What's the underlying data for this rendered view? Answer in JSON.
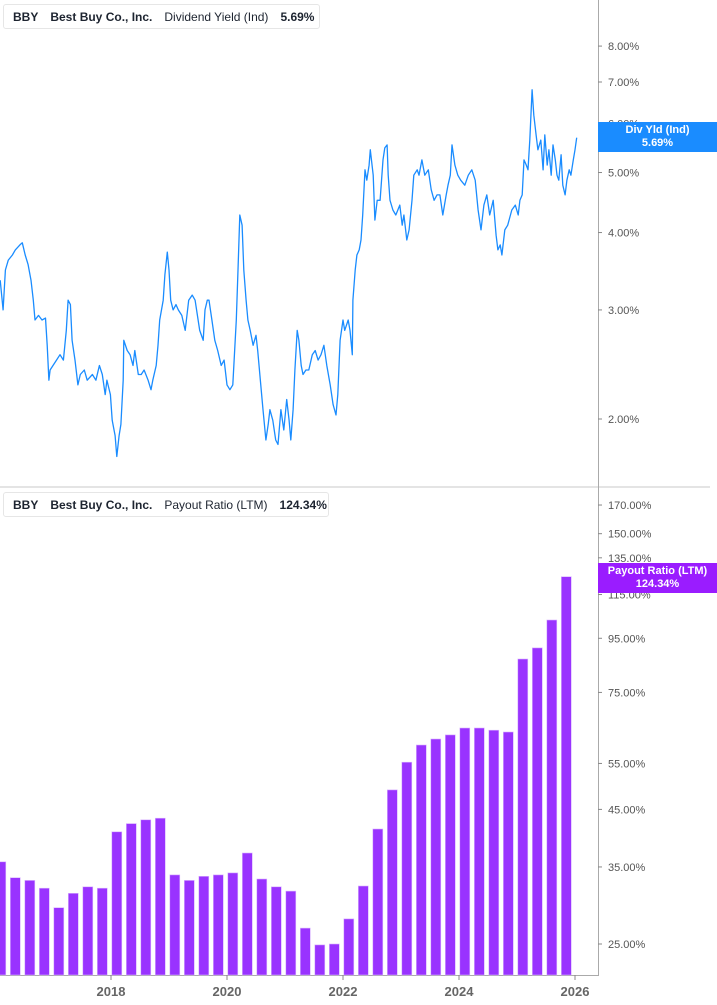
{
  "colors": {
    "yield": "#1a8cff",
    "payout": "#9933ff",
    "axis": "#999999"
  },
  "legend_top": {
    "ticker": "BBY",
    "company": "Best Buy Co., Inc.",
    "metric": "Dividend Yield (Ind)",
    "value": "5.69%"
  },
  "legend_bottom": {
    "ticker": "BBY",
    "company": "Best Buy Co., Inc.",
    "metric": "Payout Ratio (LTM)",
    "value": "124.34%"
  },
  "tag_top": {
    "label": "Div Yld (Ind)",
    "value": "5.69%"
  },
  "tag_bottom": {
    "label": "Payout Ratio (LTM)",
    "value": "124.34%"
  },
  "chart_data": [
    {
      "type": "line",
      "title": "Dividend Yield (Ind)",
      "yscale": "log",
      "ylim": [
        1.7,
        9.0
      ],
      "yticks": [
        2,
        3,
        4,
        5,
        6,
        7,
        8
      ],
      "ytick_labels": [
        "2.00%",
        "3.00%",
        "4.00%",
        "5.00%",
        "6.00%",
        "7.00%",
        "8.00%"
      ],
      "series": [
        {
          "name": "Div Yld (Ind)",
          "points": [
            [
              2016.09,
              3.35
            ],
            [
              2016.14,
              3.0
            ],
            [
              2016.18,
              3.48
            ],
            [
              2016.23,
              3.61
            ],
            [
              2016.3,
              3.68
            ],
            [
              2016.35,
              3.75
            ],
            [
              2016.43,
              3.82
            ],
            [
              2016.47,
              3.85
            ],
            [
              2016.52,
              3.68
            ],
            [
              2016.57,
              3.55
            ],
            [
              2016.62,
              3.35
            ],
            [
              2016.66,
              3.11
            ],
            [
              2016.69,
              2.89
            ],
            [
              2016.75,
              2.94
            ],
            [
              2016.81,
              2.89
            ],
            [
              2016.87,
              2.91
            ],
            [
              2016.9,
              2.63
            ],
            [
              2016.93,
              2.31
            ],
            [
              2016.95,
              2.4
            ],
            [
              2017.0,
              2.44
            ],
            [
              2017.06,
              2.49
            ],
            [
              2017.12,
              2.54
            ],
            [
              2017.18,
              2.49
            ],
            [
              2017.23,
              2.78
            ],
            [
              2017.26,
              3.11
            ],
            [
              2017.3,
              3.06
            ],
            [
              2017.33,
              2.68
            ],
            [
              2017.38,
              2.49
            ],
            [
              2017.43,
              2.27
            ],
            [
              2017.47,
              2.36
            ],
            [
              2017.54,
              2.4
            ],
            [
              2017.59,
              2.31
            ],
            [
              2017.68,
              2.36
            ],
            [
              2017.74,
              2.31
            ],
            [
              2017.8,
              2.44
            ],
            [
              2017.85,
              2.36
            ],
            [
              2017.9,
              2.19
            ],
            [
              2017.93,
              2.31
            ],
            [
              2017.99,
              2.19
            ],
            [
              2018.02,
              1.99
            ],
            [
              2018.07,
              1.88
            ],
            [
              2018.1,
              1.74
            ],
            [
              2018.14,
              1.88
            ],
            [
              2018.17,
              1.96
            ],
            [
              2018.21,
              2.31
            ],
            [
              2018.22,
              2.68
            ],
            [
              2018.28,
              2.58
            ],
            [
              2018.33,
              2.54
            ],
            [
              2018.38,
              2.44
            ],
            [
              2018.41,
              2.58
            ],
            [
              2018.47,
              2.36
            ],
            [
              2018.52,
              2.36
            ],
            [
              2018.57,
              2.4
            ],
            [
              2018.64,
              2.31
            ],
            [
              2018.69,
              2.23
            ],
            [
              2018.72,
              2.31
            ],
            [
              2018.78,
              2.44
            ],
            [
              2018.81,
              2.63
            ],
            [
              2018.84,
              2.89
            ],
            [
              2018.9,
              3.11
            ],
            [
              2018.93,
              3.42
            ],
            [
              2018.97,
              3.72
            ],
            [
              2019.0,
              3.48
            ],
            [
              2019.03,
              3.11
            ],
            [
              2019.07,
              3.0
            ],
            [
              2019.12,
              3.06
            ],
            [
              2019.16,
              3.0
            ],
            [
              2019.22,
              2.94
            ],
            [
              2019.28,
              2.78
            ],
            [
              2019.34,
              3.11
            ],
            [
              2019.4,
              3.17
            ],
            [
              2019.45,
              3.11
            ],
            [
              2019.53,
              2.78
            ],
            [
              2019.59,
              2.68
            ],
            [
              2019.62,
              3.0
            ],
            [
              2019.66,
              3.11
            ],
            [
              2019.69,
              3.11
            ],
            [
              2019.74,
              2.89
            ],
            [
              2019.79,
              2.68
            ],
            [
              2019.84,
              2.58
            ],
            [
              2019.9,
              2.44
            ],
            [
              2019.95,
              2.49
            ],
            [
              2020.0,
              2.27
            ],
            [
              2020.05,
              2.23
            ],
            [
              2020.1,
              2.27
            ],
            [
              2020.16,
              2.89
            ],
            [
              2020.19,
              3.48
            ],
            [
              2020.22,
              4.27
            ],
            [
              2020.26,
              4.11
            ],
            [
              2020.29,
              3.48
            ],
            [
              2020.33,
              3.11
            ],
            [
              2020.36,
              2.89
            ],
            [
              2020.4,
              2.78
            ],
            [
              2020.45,
              2.63
            ],
            [
              2020.5,
              2.73
            ],
            [
              2020.53,
              2.58
            ],
            [
              2020.59,
              2.23
            ],
            [
              2020.62,
              2.07
            ],
            [
              2020.67,
              1.85
            ],
            [
              2020.71,
              1.96
            ],
            [
              2020.74,
              2.07
            ],
            [
              2020.79,
              1.99
            ],
            [
              2020.84,
              1.85
            ],
            [
              2020.88,
              1.82
            ],
            [
              2020.93,
              2.07
            ],
            [
              2020.98,
              1.92
            ],
            [
              2021.03,
              2.15
            ],
            [
              2021.07,
              1.99
            ],
            [
              2021.1,
              1.85
            ],
            [
              2021.14,
              2.07
            ],
            [
              2021.17,
              2.4
            ],
            [
              2021.21,
              2.78
            ],
            [
              2021.24,
              2.68
            ],
            [
              2021.28,
              2.44
            ],
            [
              2021.31,
              2.36
            ],
            [
              2021.36,
              2.4
            ],
            [
              2021.41,
              2.4
            ],
            [
              2021.47,
              2.54
            ],
            [
              2021.52,
              2.58
            ],
            [
              2021.57,
              2.49
            ],
            [
              2021.62,
              2.54
            ],
            [
              2021.67,
              2.63
            ],
            [
              2021.72,
              2.44
            ],
            [
              2021.78,
              2.27
            ],
            [
              2021.83,
              2.11
            ],
            [
              2021.88,
              2.03
            ],
            [
              2021.91,
              2.19
            ],
            [
              2021.95,
              2.68
            ],
            [
              2022.0,
              2.89
            ],
            [
              2022.03,
              2.78
            ],
            [
              2022.09,
              2.89
            ],
            [
              2022.12,
              2.78
            ],
            [
              2022.16,
              2.54
            ],
            [
              2022.17,
              3.11
            ],
            [
              2022.21,
              3.48
            ],
            [
              2022.24,
              3.68
            ],
            [
              2022.28,
              3.75
            ],
            [
              2022.31,
              3.89
            ],
            [
              2022.34,
              4.27
            ],
            [
              2022.38,
              5.05
            ],
            [
              2022.41,
              4.86
            ],
            [
              2022.45,
              5.14
            ],
            [
              2022.47,
              5.44
            ],
            [
              2022.52,
              4.95
            ],
            [
              2022.55,
              4.19
            ],
            [
              2022.59,
              4.51
            ],
            [
              2022.64,
              4.51
            ],
            [
              2022.69,
              5.24
            ],
            [
              2022.72,
              5.48
            ],
            [
              2022.76,
              5.54
            ],
            [
              2022.78,
              4.95
            ],
            [
              2022.81,
              4.51
            ],
            [
              2022.86,
              4.35
            ],
            [
              2022.91,
              4.27
            ],
            [
              2022.98,
              4.43
            ],
            [
              2023.02,
              4.11
            ],
            [
              2023.05,
              4.27
            ],
            [
              2023.1,
              3.89
            ],
            [
              2023.14,
              4.04
            ],
            [
              2023.19,
              4.51
            ],
            [
              2023.22,
              4.95
            ],
            [
              2023.28,
              5.05
            ],
            [
              2023.31,
              4.95
            ],
            [
              2023.36,
              5.24
            ],
            [
              2023.41,
              4.95
            ],
            [
              2023.47,
              5.05
            ],
            [
              2023.52,
              4.69
            ],
            [
              2023.57,
              4.51
            ],
            [
              2023.62,
              4.6
            ],
            [
              2023.67,
              4.6
            ],
            [
              2023.72,
              4.27
            ],
            [
              2023.78,
              4.6
            ],
            [
              2023.81,
              4.77
            ],
            [
              2023.85,
              4.95
            ],
            [
              2023.88,
              5.54
            ],
            [
              2023.93,
              5.14
            ],
            [
              2023.98,
              4.95
            ],
            [
              2024.03,
              4.86
            ],
            [
              2024.1,
              4.77
            ],
            [
              2024.16,
              4.95
            ],
            [
              2024.22,
              5.05
            ],
            [
              2024.28,
              4.86
            ],
            [
              2024.33,
              4.35
            ],
            [
              2024.38,
              4.04
            ],
            [
              2024.43,
              4.43
            ],
            [
              2024.48,
              4.6
            ],
            [
              2024.53,
              4.27
            ],
            [
              2024.59,
              4.51
            ],
            [
              2024.64,
              3.96
            ],
            [
              2024.67,
              3.75
            ],
            [
              2024.71,
              3.82
            ],
            [
              2024.74,
              3.68
            ],
            [
              2024.79,
              4.04
            ],
            [
              2024.84,
              4.11
            ],
            [
              2024.91,
              4.35
            ],
            [
              2024.97,
              4.43
            ],
            [
              2025.02,
              4.27
            ],
            [
              2025.05,
              4.51
            ],
            [
              2025.09,
              4.6
            ],
            [
              2025.12,
              5.24
            ],
            [
              2025.16,
              5.14
            ],
            [
              2025.19,
              5.05
            ],
            [
              2025.22,
              5.64
            ],
            [
              2025.26,
              6.8
            ],
            [
              2025.29,
              6.19
            ],
            [
              2025.33,
              5.75
            ],
            [
              2025.36,
              5.44
            ],
            [
              2025.41,
              5.64
            ],
            [
              2025.45,
              5.05
            ],
            [
              2025.48,
              5.75
            ],
            [
              2025.52,
              5.14
            ],
            [
              2025.55,
              5.44
            ],
            [
              2025.59,
              4.95
            ],
            [
              2025.62,
              5.54
            ],
            [
              2025.66,
              5.24
            ],
            [
              2025.69,
              4.95
            ],
            [
              2025.72,
              4.86
            ],
            [
              2025.76,
              5.34
            ],
            [
              2025.79,
              4.77
            ],
            [
              2025.83,
              4.6
            ],
            [
              2025.86,
              4.86
            ],
            [
              2025.9,
              5.05
            ],
            [
              2025.93,
              4.95
            ],
            [
              2025.97,
              5.24
            ],
            [
              2026.0,
              5.44
            ],
            [
              2026.03,
              5.69
            ]
          ]
        }
      ]
    },
    {
      "type": "bar",
      "title": "Payout Ratio (LTM)",
      "yscale": "log",
      "ylim": [
        21.5,
        180
      ],
      "yticks": [
        25,
        35,
        45,
        55,
        75,
        95,
        115,
        135,
        150,
        170
      ],
      "ytick_labels": [
        "25.00%",
        "35.00%",
        "45.00%",
        "55.00%",
        "75.00%",
        "95.00%",
        "115.00%",
        "135.00%",
        "150.00%",
        "170.00%"
      ],
      "x_start": 2016.1,
      "x_step_years": 0.25,
      "values": [
        35.8,
        33.4,
        33.0,
        31.9,
        29.3,
        31.2,
        32.1,
        31.9,
        40.8,
        42.3,
        43.0,
        43.3,
        33.8,
        33.0,
        33.6,
        33.8,
        34.1,
        37.2,
        33.2,
        32.1,
        31.5,
        26.8,
        24.9,
        25.0,
        27.9,
        32.2,
        41.3,
        49.0,
        55.3,
        59.6,
        61.2,
        62.3,
        64.2,
        64.2,
        63.6,
        63.1,
        86.8,
        91.1,
        102.9,
        124.34
      ]
    }
  ],
  "x_axis": {
    "ticks": [
      2018,
      2020,
      2022,
      2024,
      2026
    ],
    "labels": [
      "2018",
      "2020",
      "2022",
      "2024",
      "2026"
    ]
  }
}
